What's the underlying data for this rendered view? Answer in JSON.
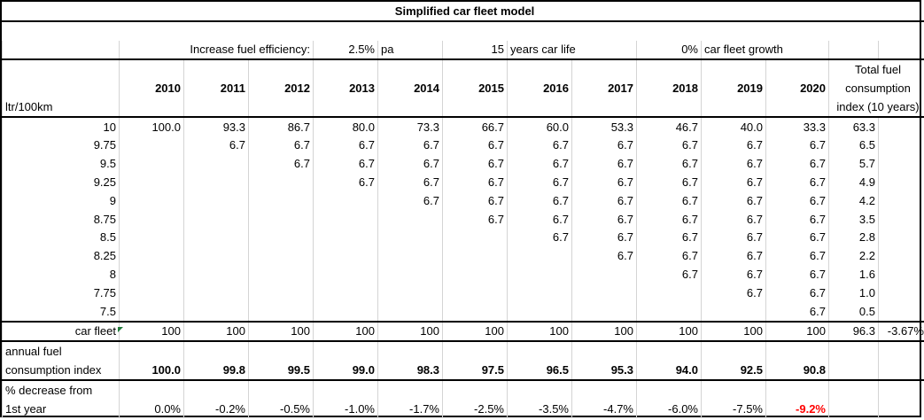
{
  "title": "Simplified car fleet model",
  "params": {
    "efficiency_label": "Increase fuel efficiency:",
    "efficiency_value": "2.5%",
    "efficiency_unit": "pa",
    "life_value": "15",
    "life_label": "years car life",
    "growth_value": "0%",
    "growth_label": "car fleet growth"
  },
  "header": {
    "unit_label": "ltr/100km",
    "years": [
      "2010",
      "2011",
      "2012",
      "2013",
      "2014",
      "2015",
      "2016",
      "2017",
      "2018",
      "2019",
      "2020"
    ],
    "total_line1": "Total fuel",
    "total_line2": "consumption",
    "total_line3": "index (10 years)"
  },
  "rows": [
    {
      "label": "10",
      "cells": [
        "100.0",
        "93.3",
        "86.7",
        "80.0",
        "73.3",
        "66.7",
        "60.0",
        "53.3",
        "46.7",
        "40.0",
        "33.3"
      ],
      "total": "63.3"
    },
    {
      "label": "9.75",
      "cells": [
        "",
        "6.7",
        "6.7",
        "6.7",
        "6.7",
        "6.7",
        "6.7",
        "6.7",
        "6.7",
        "6.7",
        "6.7"
      ],
      "total": "6.5"
    },
    {
      "label": "9.5",
      "cells": [
        "",
        "",
        "6.7",
        "6.7",
        "6.7",
        "6.7",
        "6.7",
        "6.7",
        "6.7",
        "6.7",
        "6.7"
      ],
      "total": "5.7"
    },
    {
      "label": "9.25",
      "cells": [
        "",
        "",
        "",
        "6.7",
        "6.7",
        "6.7",
        "6.7",
        "6.7",
        "6.7",
        "6.7",
        "6.7"
      ],
      "total": "4.9"
    },
    {
      "label": "9",
      "cells": [
        "",
        "",
        "",
        "",
        "6.7",
        "6.7",
        "6.7",
        "6.7",
        "6.7",
        "6.7",
        "6.7"
      ],
      "total": "4.2"
    },
    {
      "label": "8.75",
      "cells": [
        "",
        "",
        "",
        "",
        "",
        "6.7",
        "6.7",
        "6.7",
        "6.7",
        "6.7",
        "6.7"
      ],
      "total": "3.5"
    },
    {
      "label": "8.5",
      "cells": [
        "",
        "",
        "",
        "",
        "",
        "",
        "6.7",
        "6.7",
        "6.7",
        "6.7",
        "6.7"
      ],
      "total": "2.8"
    },
    {
      "label": "8.25",
      "cells": [
        "",
        "",
        "",
        "",
        "",
        "",
        "",
        "6.7",
        "6.7",
        "6.7",
        "6.7"
      ],
      "total": "2.2"
    },
    {
      "label": "8",
      "cells": [
        "",
        "",
        "",
        "",
        "",
        "",
        "",
        "",
        "6.7",
        "6.7",
        "6.7"
      ],
      "total": "1.6"
    },
    {
      "label": "7.75",
      "cells": [
        "",
        "",
        "",
        "",
        "",
        "",
        "",
        "",
        "",
        "6.7",
        "6.7"
      ],
      "total": "1.0"
    },
    {
      "label": "7.5",
      "cells": [
        "",
        "",
        "",
        "",
        "",
        "",
        "",
        "",
        "",
        "",
        "6.7"
      ],
      "total": "0.5"
    }
  ],
  "fleet": {
    "label": "car fleet",
    "values": [
      "100",
      "100",
      "100",
      "100",
      "100",
      "100",
      "100",
      "100",
      "100",
      "100",
      "100"
    ],
    "total": "96.3",
    "extra": "-3.67%"
  },
  "annual": {
    "label_line1": "annual fuel",
    "label_line2": "consumption index",
    "values": [
      "100.0",
      "99.8",
      "99.5",
      "99.0",
      "98.3",
      "97.5",
      "96.5",
      "95.3",
      "94.0",
      "92.5",
      "90.8"
    ]
  },
  "decrease": {
    "label_line1": "% decrease from",
    "label_line2": "1st year",
    "values": [
      "0.0%",
      "-0.2%",
      "-0.5%",
      "-1.0%",
      "-1.7%",
      "-2.5%",
      "-3.5%",
      "-4.7%",
      "-6.0%",
      "-7.5%",
      "-9.2%"
    ]
  },
  "colors": {
    "highlight_red": "#ff0000",
    "gridline": "#d4d4d4",
    "comment_marker": "#1f7a3a"
  }
}
